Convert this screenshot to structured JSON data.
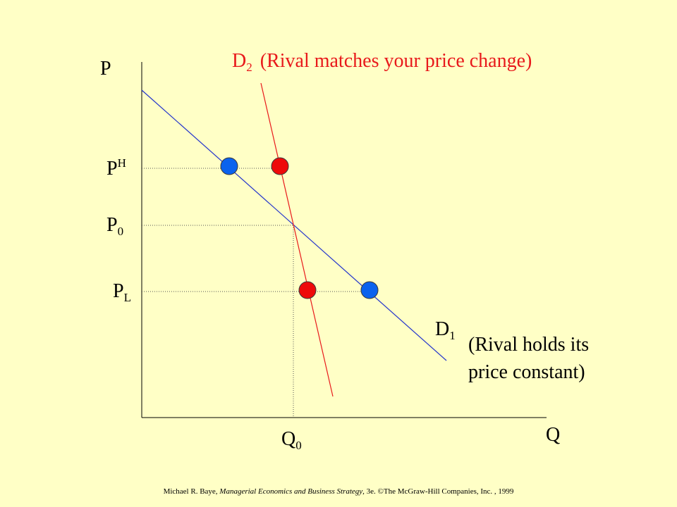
{
  "axes": {
    "y_label": "P",
    "x_label": "Q"
  },
  "price_labels": {
    "high": {
      "main": "P",
      "sup": "H"
    },
    "zero": {
      "main": "P",
      "sub": "0"
    },
    "low": {
      "main": "P",
      "sub": "L"
    }
  },
  "quantity_label": {
    "main": "Q",
    "sub": "0"
  },
  "d2": {
    "main": "D",
    "sub": "2",
    "note": "(Rival matches your price change)",
    "color": "#e8191b"
  },
  "d1": {
    "main": "D",
    "sub": "1",
    "note_line1": "(Rival holds its",
    "note_line2": "price constant)",
    "color": "#2233cc"
  },
  "points": {
    "color_d1": "#0a62ee",
    "color_d2": "#ee0a0a"
  },
  "footer": {
    "author": "Michael R. Baye, ",
    "book": "Managerial Economics and Business Strategy",
    "rest": ", 3e. ©The McGraw-Hill Companies, Inc. , 1999"
  }
}
